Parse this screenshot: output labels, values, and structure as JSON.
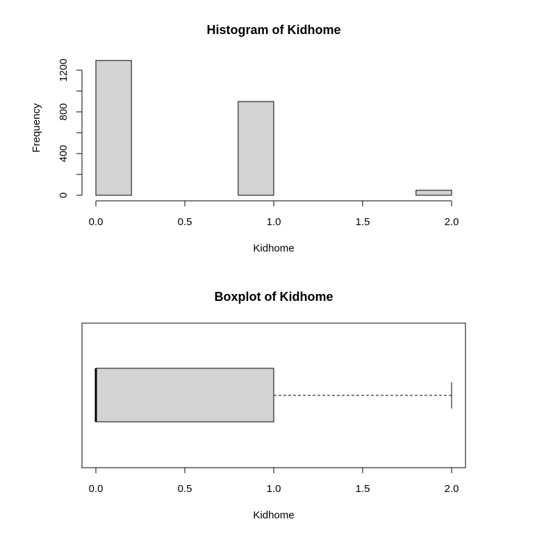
{
  "chart_data": [
    {
      "type": "bar",
      "title": "Histogram of Kidhome",
      "xlabel": "Kidhome",
      "ylabel": "Frequency",
      "bins": [
        {
          "from": 0.0,
          "to": 0.2,
          "count": 1293
        },
        {
          "from": 0.2,
          "to": 0.4,
          "count": 0
        },
        {
          "from": 0.4,
          "to": 0.6,
          "count": 0
        },
        {
          "from": 0.6,
          "to": 0.8,
          "count": 0
        },
        {
          "from": 0.8,
          "to": 1.0,
          "count": 899
        },
        {
          "from": 1.0,
          "to": 1.2,
          "count": 0
        },
        {
          "from": 1.2,
          "to": 1.4,
          "count": 0
        },
        {
          "from": 1.4,
          "to": 1.6,
          "count": 0
        },
        {
          "from": 1.6,
          "to": 1.8,
          "count": 0
        },
        {
          "from": 1.8,
          "to": 2.0,
          "count": 48
        }
      ],
      "xlim": [
        0.0,
        2.0
      ],
      "ylim": [
        0,
        1300
      ],
      "xticks": [
        "0.0",
        "0.5",
        "1.0",
        "1.5",
        "2.0"
      ],
      "xtick_values": [
        0.0,
        0.5,
        1.0,
        1.5,
        2.0
      ],
      "yticks": [
        "0",
        "400",
        "800",
        "1200"
      ],
      "ytick_values": [
        0,
        400,
        800,
        1200
      ],
      "ytick_minor_values": [
        200,
        600,
        1000
      ]
    },
    {
      "type": "boxplot",
      "title": "Boxplot of Kidhome",
      "xlabel": "Kidhome",
      "orientation": "horizontal",
      "stats": {
        "min": 0.0,
        "q1": 0.0,
        "median": 0.0,
        "q3": 1.0,
        "max": 2.0
      },
      "xlim": [
        0.0,
        2.0
      ],
      "xticks": [
        "0.0",
        "0.5",
        "1.0",
        "1.5",
        "2.0"
      ],
      "xtick_values": [
        0.0,
        0.5,
        1.0,
        1.5,
        2.0
      ]
    }
  ]
}
